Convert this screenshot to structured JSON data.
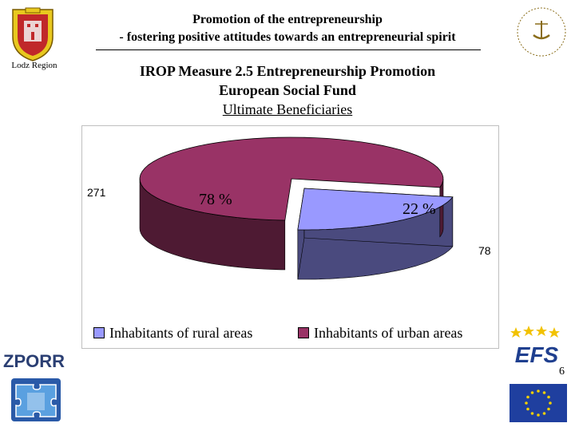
{
  "header": {
    "region_label": "Lodz Region",
    "title_line1": "Promotion of the entrepreneurship",
    "title_line2": "- fostering positive attitudes towards an entrepreneurial spirit"
  },
  "slide": {
    "title_line1": "IROP Measure 2.5 Entrepreneurship Promotion",
    "title_line2": "European Social Fund",
    "title_line3": "Ultimate Beneficiaries"
  },
  "chart_data": {
    "type": "pie",
    "title": "",
    "style": "3d-exploded",
    "slices": [
      {
        "label": "Inhabitants of rural areas",
        "value": 78,
        "percent_label": "22 %",
        "color": "#9999ff",
        "side_color": "#4a4a7e"
      },
      {
        "label": "Inhabitants of urban areas",
        "value": 271,
        "percent_label": "78 %",
        "color": "#993366",
        "side_color": "#4e1a33"
      }
    ],
    "legend_placement": "bottom"
  },
  "logos": {
    "zporr_text": "ZPORR",
    "efs_text": "EFS"
  },
  "page_number": "6"
}
